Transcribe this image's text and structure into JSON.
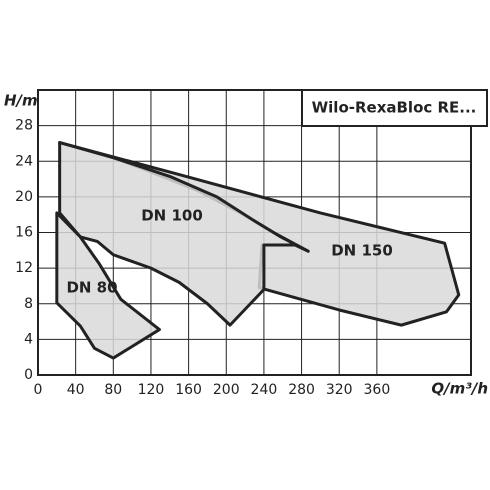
{
  "chart_data": {
    "type": "polygon",
    "title": "Wilo-RexaBloc RE...",
    "x_label": "Q/m³/h",
    "y_label": "H/m",
    "xlim": [
      0,
      460
    ],
    "ylim": [
      0,
      32
    ],
    "xticks": [
      0,
      40,
      80,
      120,
      160,
      200,
      240,
      280,
      320,
      360
    ],
    "yticks": [
      0,
      4,
      8,
      12,
      16,
      20,
      24,
      28
    ],
    "grid": true,
    "color": "#d9d9d9",
    "series": [
      {
        "name": "DN 150",
        "x": [
          23,
          150,
          300,
          432,
          447,
          434,
          386,
          320,
          235,
          238,
          273,
          287,
          250,
          215,
          172,
          120,
          80
        ],
        "y": [
          26.1,
          22.5,
          18.2,
          14.8,
          9.0,
          7.1,
          5.6,
          7.3,
          9.8,
          14.6,
          14.6,
          13.9,
          16.0,
          18.2,
          20.6,
          22.8,
          24.4
        ]
      },
      {
        "name": "DN 100",
        "x": [
          23,
          80,
          140,
          190,
          230,
          258,
          287,
          274,
          240,
          240,
          204,
          180,
          150,
          120,
          80,
          63,
          45,
          23
        ],
        "y": [
          26.1,
          24.4,
          22.3,
          20.0,
          17.3,
          15.5,
          13.9,
          14.6,
          14.6,
          9.6,
          5.6,
          8.0,
          10.4,
          12.0,
          13.5,
          15.0,
          15.5,
          18.2
        ]
      },
      {
        "name": "DN 80",
        "x": [
          20,
          45,
          65,
          88,
          129,
          80,
          60,
          45,
          20
        ],
        "y": [
          18.2,
          15.5,
          12.5,
          8.5,
          5.1,
          1.9,
          3.0,
          5.5,
          8.1
        ]
      }
    ]
  }
}
